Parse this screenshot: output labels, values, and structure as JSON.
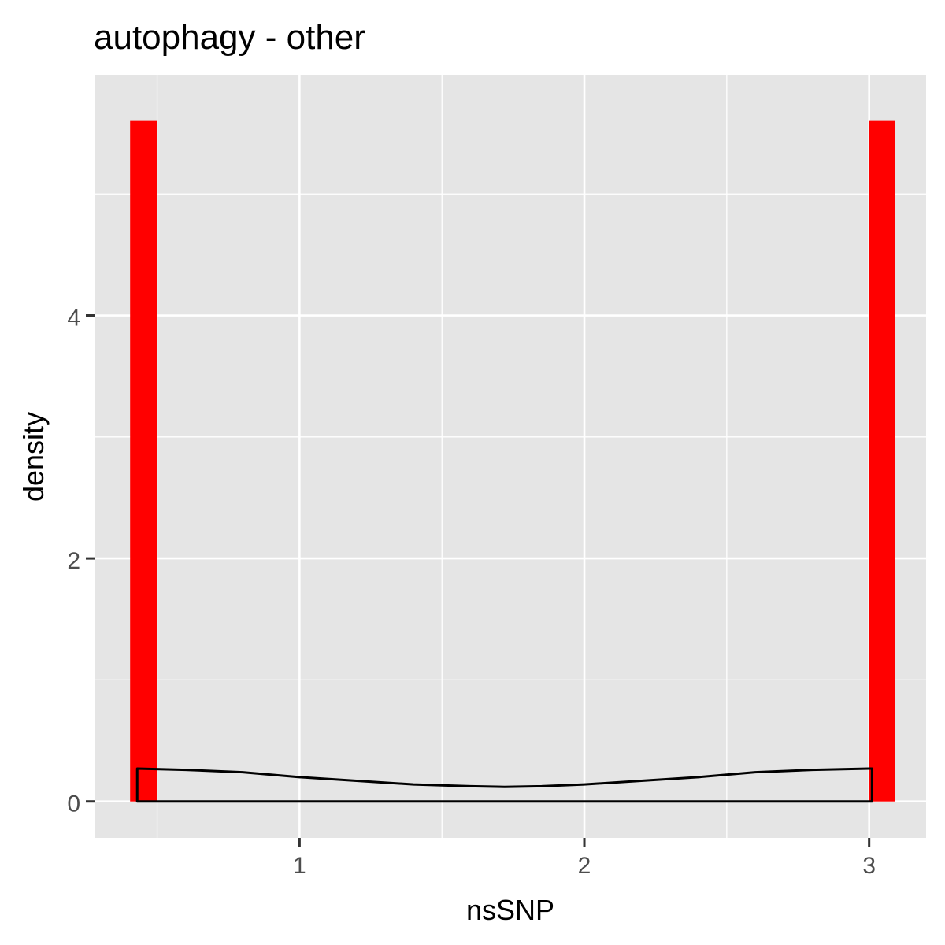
{
  "chart_data": {
    "type": "bar",
    "title": "autophagy - other",
    "xlabel": "nsSNP",
    "ylabel": "density",
    "xlim": [
      0.28,
      3.2
    ],
    "ylim": [
      -0.3,
      5.98
    ],
    "x_ticks": [
      1,
      2,
      3
    ],
    "y_ticks": [
      0,
      2,
      4
    ],
    "grid": true,
    "colors": {
      "bar": "#ff0000",
      "density_line": "#000000",
      "panel": "#e5e5e5",
      "gridline": "#ffffff",
      "axis_text": "#4d4d4d"
    },
    "histogram": [
      {
        "x_start": 0.405,
        "x_end": 0.5,
        "density": 5.6
      },
      {
        "x_start": 3.0,
        "x_end": 3.09,
        "density": 5.6
      }
    ],
    "density_curve": {
      "x": [
        0.43,
        0.6,
        0.8,
        1.0,
        1.2,
        1.4,
        1.6,
        1.72,
        1.85,
        2.0,
        2.2,
        2.4,
        2.6,
        2.8,
        3.0
      ],
      "y": [
        0.27,
        0.26,
        0.24,
        0.2,
        0.17,
        0.14,
        0.125,
        0.12,
        0.125,
        0.14,
        0.17,
        0.2,
        0.24,
        0.26,
        0.27
      ],
      "x_min": 0.43,
      "x_max": 3.01
    }
  }
}
